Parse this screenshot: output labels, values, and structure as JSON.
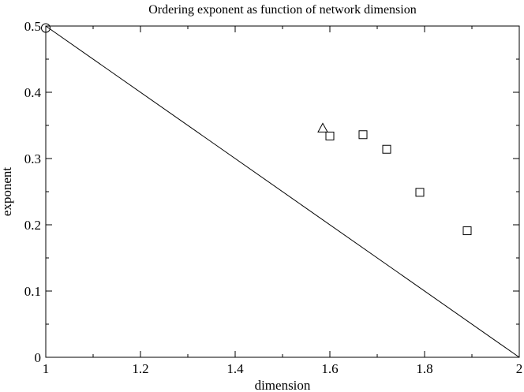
{
  "chart_data": {
    "type": "scatter",
    "title": "Ordering exponent as function of network dimension",
    "xlabel": "dimension",
    "ylabel": "exponent",
    "xlim": [
      1,
      2
    ],
    "ylim": [
      0,
      0.5
    ],
    "x_ticks": [
      1,
      1.2,
      1.4,
      1.6,
      1.8,
      2
    ],
    "x_tick_labels": [
      "1",
      "1.2",
      "1.4",
      "1.6",
      "1.8",
      "2"
    ],
    "y_ticks": [
      0,
      0.1,
      0.2,
      0.3,
      0.4,
      0.5
    ],
    "y_tick_labels": [
      "0",
      "0.1",
      "0.2",
      "0.3",
      "0.4",
      "0.5"
    ],
    "grid": false,
    "legend": "none",
    "series": [
      {
        "marker": "circle",
        "points": [
          {
            "x": 1.0,
            "y": 0.497
          }
        ]
      },
      {
        "marker": "triangle",
        "points": [
          {
            "x": 1.585,
            "y": 0.346
          }
        ]
      },
      {
        "marker": "square",
        "points": [
          {
            "x": 1.6,
            "y": 0.334
          },
          {
            "x": 1.67,
            "y": 0.336
          },
          {
            "x": 1.72,
            "y": 0.314
          },
          {
            "x": 1.79,
            "y": 0.249
          },
          {
            "x": 1.89,
            "y": 0.191
          }
        ]
      },
      {
        "marker": "line",
        "points": [
          {
            "x": 1.0,
            "y": 0.5
          },
          {
            "x": 2.0,
            "y": 0.0
          }
        ]
      }
    ]
  }
}
